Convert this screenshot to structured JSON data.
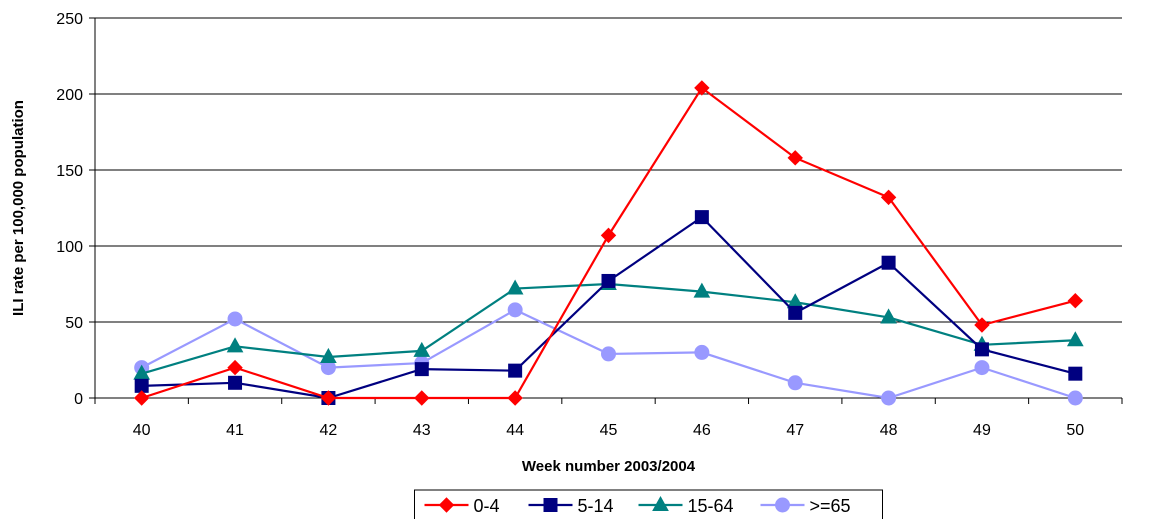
{
  "chart_data": {
    "type": "line",
    "title": "",
    "xlabel": "Week number 2003/2004",
    "ylabel": "ILI rate per 100,000 population",
    "categories": [
      "40",
      "41",
      "42",
      "43",
      "44",
      "45",
      "46",
      "47",
      "48",
      "49",
      "50"
    ],
    "ylim": [
      0,
      250
    ],
    "yticks": [
      0,
      50,
      100,
      150,
      200,
      250
    ],
    "grid": "horizontal",
    "legend_position": "bottom",
    "series": [
      {
        "name": "0-4",
        "color": "#ff0000",
        "marker": "diamond",
        "values": [
          0,
          20,
          0,
          0,
          0,
          107,
          204,
          158,
          132,
          48,
          64
        ]
      },
      {
        "name": "5-14",
        "color": "#000080",
        "marker": "square",
        "values": [
          8,
          10,
          0,
          19,
          18,
          77,
          119,
          56,
          89,
          32,
          16
        ]
      },
      {
        "name": "15-64",
        "color": "#008080",
        "marker": "triangle",
        "values": [
          16,
          34,
          27,
          31,
          72,
          75,
          70,
          63,
          53,
          35,
          38
        ]
      },
      {
        "name": ">=65",
        "color": "#9999ff",
        "marker": "circle",
        "values": [
          20,
          52,
          20,
          23,
          58,
          29,
          30,
          10,
          0,
          20,
          0
        ]
      }
    ]
  }
}
